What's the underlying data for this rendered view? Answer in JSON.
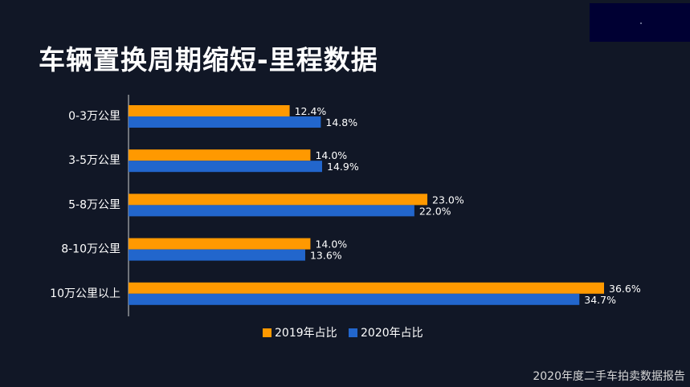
{
  "title": "车辆置换周期缩短-里程数据",
  "footer": "2020年度二手车拍卖数据报告",
  "colors": {
    "background": "#111726",
    "series_2019": "#ff9900",
    "series_2020": "#2266cc",
    "text": "#ffffff"
  },
  "chart_data": {
    "type": "bar",
    "orientation": "horizontal",
    "categories": [
      "0-3万公里",
      "3-5万公里",
      "5-8万公里",
      "8-10万公里",
      "10万公里以上"
    ],
    "series": [
      {
        "name": "2019年占比",
        "values": [
          12.4,
          14.0,
          23.0,
          14.0,
          36.6
        ],
        "labels": [
          "12.4%",
          "14.0%",
          "23.0%",
          "14.0%",
          "36.6%"
        ],
        "color": "#ff9900"
      },
      {
        "name": "2020年占比",
        "values": [
          14.8,
          14.9,
          22.0,
          13.6,
          34.7
        ],
        "labels": [
          "14.8%",
          "14.9%",
          "22.0%",
          "13.6%",
          "34.7%"
        ],
        "color": "#2266cc"
      }
    ],
    "xlim": [
      0,
      40
    ],
    "grid": false,
    "legend_position": "bottom"
  }
}
